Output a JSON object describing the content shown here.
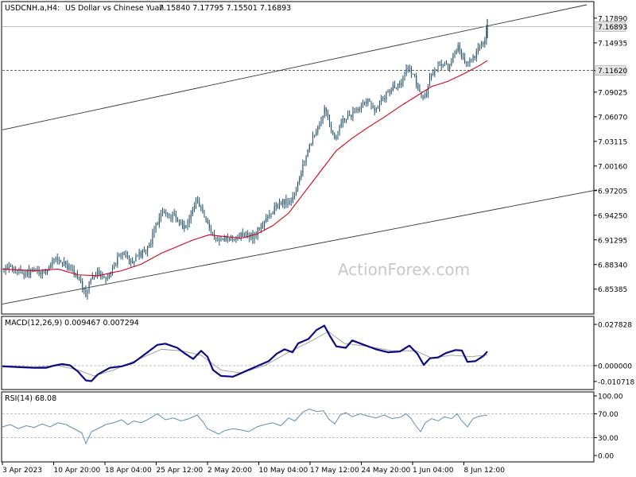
{
  "header": {
    "symbol": "USDCNH.a,H4:",
    "description": "US Dollar vs Chinese Yuan",
    "ohlc": "7.15840 7.17795 7.15501 7.16893"
  },
  "watermark": "ActionForex.com",
  "colors": {
    "candle": "#1f4f66",
    "ma": "#d4001a",
    "channel": "#333333",
    "macd": "#0a0a84",
    "signal": "#9a9a9a",
    "rsi": "#5b90ad",
    "price_tag_bg": "#e6e6e6"
  },
  "chart_data": [
    {
      "type": "candlestick",
      "pane": "price",
      "ylim": [
        6.825,
        7.195
      ],
      "y_ticks": [
        "7.17890",
        "7.14935",
        "7.11620",
        "7.09025",
        "7.06070",
        "7.03115",
        "7.00160",
        "6.97205",
        "6.94250",
        "6.91295",
        "6.88340",
        "6.85385"
      ],
      "last_price": "7.16893",
      "hline": "7.11620",
      "x_ticks": [
        "3 Apr 2023",
        "10 Apr 20:00",
        "18 Apr 04:00",
        "25 Apr 12:00",
        "2 May 20:00",
        "10 May 04:00",
        "17 May 12:00",
        "24 May 20:00",
        "1 Jun 04:00",
        "8 Jun 12:00"
      ],
      "close_path": [
        [
          0,
          6.875
        ],
        [
          10,
          6.88
        ],
        [
          25,
          6.872
        ],
        [
          40,
          6.878
        ],
        [
          55,
          6.874
        ],
        [
          62,
          6.89
        ],
        [
          72,
          6.887
        ],
        [
          85,
          6.878
        ],
        [
          92,
          6.872
        ],
        [
          100,
          6.86
        ],
        [
          105,
          6.845
        ],
        [
          112,
          6.868
        ],
        [
          120,
          6.874
        ],
        [
          128,
          6.869
        ],
        [
          134,
          6.872
        ],
        [
          140,
          6.878
        ],
        [
          145,
          6.892
        ],
        [
          150,
          6.9
        ],
        [
          158,
          6.89
        ],
        [
          165,
          6.887
        ],
        [
          172,
          6.895
        ],
        [
          178,
          6.9
        ],
        [
          185,
          6.905
        ],
        [
          193,
          6.93
        ],
        [
          200,
          6.945
        ],
        [
          208,
          6.94
        ],
        [
          215,
          6.942
        ],
        [
          222,
          6.938
        ],
        [
          228,
          6.925
        ],
        [
          236,
          6.942
        ],
        [
          244,
          6.962
        ],
        [
          250,
          6.95
        ],
        [
          256,
          6.935
        ],
        [
          262,
          6.925
        ],
        [
          270,
          6.91
        ],
        [
          278,
          6.915
        ],
        [
          285,
          6.912
        ],
        [
          292,
          6.915
        ],
        [
          300,
          6.92
        ],
        [
          308,
          6.918
        ],
        [
          316,
          6.918
        ],
        [
          322,
          6.925
        ],
        [
          330,
          6.935
        ],
        [
          338,
          6.945
        ],
        [
          346,
          6.955
        ],
        [
          354,
          6.96
        ],
        [
          362,
          6.955
        ],
        [
          368,
          6.97
        ],
        [
          374,
          6.99
        ],
        [
          380,
          7.005
        ],
        [
          388,
          7.03
        ],
        [
          395,
          7.04
        ],
        [
          402,
          7.06
        ],
        [
          406,
          7.07
        ],
        [
          412,
          7.05
        ],
        [
          418,
          7.03
        ],
        [
          425,
          7.05
        ],
        [
          432,
          7.06
        ],
        [
          440,
          7.065
        ],
        [
          447,
          7.07
        ],
        [
          455,
          7.075
        ],
        [
          462,
          7.08
        ],
        [
          468,
          7.07
        ],
        [
          475,
          7.078
        ],
        [
          482,
          7.085
        ],
        [
          490,
          7.095
        ],
        [
          497,
          7.1
        ],
        [
          504,
          7.105
        ],
        [
          510,
          7.12
        ],
        [
          516,
          7.115
        ],
        [
          521,
          7.1
        ],
        [
          526,
          7.085
        ],
        [
          530,
          7.08
        ],
        [
          535,
          7.095
        ],
        [
          540,
          7.112
        ],
        [
          545,
          7.118
        ],
        [
          550,
          7.122
        ],
        [
          556,
          7.127
        ],
        [
          562,
          7.12
        ],
        [
          568,
          7.137
        ],
        [
          573,
          7.145
        ],
        [
          578,
          7.13
        ],
        [
          583,
          7.125
        ],
        [
          588,
          7.128
        ],
        [
          592,
          7.132
        ],
        [
          598,
          7.14
        ],
        [
          603,
          7.148
        ],
        [
          607,
          7.155
        ],
        [
          610,
          7.169
        ]
      ],
      "ma_path": [
        [
          0,
          6.878
        ],
        [
          40,
          6.876
        ],
        [
          70,
          6.878
        ],
        [
          95,
          6.871
        ],
        [
          120,
          6.87
        ],
        [
          150,
          6.876
        ],
        [
          175,
          6.884
        ],
        [
          200,
          6.897
        ],
        [
          220,
          6.905
        ],
        [
          240,
          6.913
        ],
        [
          260,
          6.919
        ],
        [
          280,
          6.917
        ],
        [
          300,
          6.915
        ],
        [
          320,
          6.92
        ],
        [
          340,
          6.93
        ],
        [
          360,
          6.945
        ],
        [
          380,
          6.97
        ],
        [
          400,
          6.995
        ],
        [
          420,
          7.02
        ],
        [
          440,
          7.035
        ],
        [
          460,
          7.048
        ],
        [
          480,
          7.06
        ],
        [
          500,
          7.073
        ],
        [
          520,
          7.085
        ],
        [
          540,
          7.097
        ],
        [
          560,
          7.103
        ],
        [
          580,
          7.112
        ],
        [
          600,
          7.122
        ],
        [
          610,
          7.128
        ]
      ],
      "channel_upper": [
        [
          0,
          7.045
        ],
        [
          735,
          7.195
        ]
      ],
      "channel_lower": [
        [
          0,
          6.836
        ],
        [
          748,
          6.973
        ]
      ]
    },
    {
      "type": "line",
      "pane": "macd",
      "title": "MACD(12,26,9) 0.009467 0.007294",
      "ylim": [
        -0.0135,
        0.03
      ],
      "y_ticks": [
        "0.027828",
        "0.000000",
        "-0.010718"
      ],
      "macd_path": [
        [
          0,
          -0.0005
        ],
        [
          20,
          -0.001
        ],
        [
          40,
          -0.0015
        ],
        [
          55,
          -0.0015
        ],
        [
          65,
          0.0
        ],
        [
          75,
          0.001
        ],
        [
          85,
          0.0002
        ],
        [
          95,
          -0.004
        ],
        [
          105,
          -0.01
        ],
        [
          112,
          -0.0105
        ],
        [
          120,
          -0.006
        ],
        [
          135,
          -0.0015
        ],
        [
          150,
          -0.0005
        ],
        [
          165,
          0.002
        ],
        [
          180,
          0.008
        ],
        [
          195,
          0.014
        ],
        [
          205,
          0.0148
        ],
        [
          220,
          0.012
        ],
        [
          230,
          0.008
        ],
        [
          240,
          0.0045
        ],
        [
          250,
          0.01
        ],
        [
          258,
          0.006
        ],
        [
          265,
          -0.003
        ],
        [
          275,
          -0.007
        ],
        [
          290,
          -0.0075
        ],
        [
          305,
          -0.004
        ],
        [
          320,
          -0.0005
        ],
        [
          335,
          0.003
        ],
        [
          345,
          0.008
        ],
        [
          355,
          0.011
        ],
        [
          365,
          0.009
        ],
        [
          372,
          0.015
        ],
        [
          385,
          0.018
        ],
        [
          395,
          0.024
        ],
        [
          405,
          0.027
        ],
        [
          412,
          0.02
        ],
        [
          420,
          0.013
        ],
        [
          432,
          0.012
        ],
        [
          440,
          0.017
        ],
        [
          455,
          0.014
        ],
        [
          470,
          0.011
        ],
        [
          485,
          0.009
        ],
        [
          500,
          0.0095
        ],
        [
          512,
          0.0135
        ],
        [
          522,
          0.008
        ],
        [
          530,
          0.0005
        ],
        [
          538,
          0.005
        ],
        [
          548,
          0.0055
        ],
        [
          558,
          0.0085
        ],
        [
          570,
          0.0105
        ],
        [
          578,
          0.0102
        ],
        [
          585,
          0.0025
        ],
        [
          595,
          0.003
        ],
        [
          605,
          0.0065
        ],
        [
          610,
          0.0095
        ]
      ],
      "signal_path": [
        [
          0,
          0.0
        ],
        [
          40,
          -0.001
        ],
        [
          70,
          0.0
        ],
        [
          95,
          -0.003
        ],
        [
          115,
          -0.007
        ],
        [
          140,
          -0.003
        ],
        [
          170,
          0.004
        ],
        [
          200,
          0.011
        ],
        [
          225,
          0.01
        ],
        [
          250,
          0.007
        ],
        [
          275,
          -0.003
        ],
        [
          300,
          -0.005
        ],
        [
          330,
          0.0
        ],
        [
          360,
          0.009
        ],
        [
          390,
          0.017
        ],
        [
          410,
          0.023
        ],
        [
          430,
          0.015
        ],
        [
          460,
          0.013
        ],
        [
          490,
          0.01
        ],
        [
          520,
          0.01
        ],
        [
          540,
          0.005
        ],
        [
          565,
          0.007
        ],
        [
          590,
          0.006
        ],
        [
          610,
          0.0073
        ]
      ]
    },
    {
      "type": "line",
      "pane": "rsi",
      "title": "RSI(14) 68.08",
      "ylim": [
        0,
        100
      ],
      "y_ticks": [
        "100.00",
        "70.00",
        "30.00",
        "0.00"
      ],
      "levels": [
        70,
        30
      ],
      "rsi_path": [
        [
          0,
          48
        ],
        [
          10,
          52
        ],
        [
          20,
          45
        ],
        [
          30,
          50
        ],
        [
          40,
          47
        ],
        [
          50,
          53
        ],
        [
          60,
          48
        ],
        [
          70,
          55
        ],
        [
          80,
          52
        ],
        [
          90,
          45
        ],
        [
          100,
          38
        ],
        [
          105,
          20
        ],
        [
          112,
          40
        ],
        [
          120,
          45
        ],
        [
          130,
          52
        ],
        [
          140,
          55
        ],
        [
          150,
          60
        ],
        [
          158,
          52
        ],
        [
          165,
          58
        ],
        [
          175,
          55
        ],
        [
          185,
          62
        ],
        [
          195,
          70
        ],
        [
          205,
          60
        ],
        [
          215,
          63
        ],
        [
          225,
          58
        ],
        [
          235,
          62
        ],
        [
          245,
          68
        ],
        [
          252,
          57
        ],
        [
          258,
          45
        ],
        [
          266,
          40
        ],
        [
          272,
          36
        ],
        [
          280,
          42
        ],
        [
          290,
          45
        ],
        [
          300,
          43
        ],
        [
          310,
          40
        ],
        [
          320,
          48
        ],
        [
          330,
          52
        ],
        [
          340,
          55
        ],
        [
          350,
          50
        ],
        [
          360,
          63
        ],
        [
          368,
          58
        ],
        [
          378,
          73
        ],
        [
          386,
          78
        ],
        [
          395,
          74
        ],
        [
          404,
          75
        ],
        [
          410,
          62
        ],
        [
          418,
          53
        ],
        [
          425,
          68
        ],
        [
          432,
          72
        ],
        [
          440,
          65
        ],
        [
          450,
          70
        ],
        [
          460,
          66
        ],
        [
          470,
          63
        ],
        [
          480,
          68
        ],
        [
          490,
          62
        ],
        [
          500,
          64
        ],
        [
          508,
          70
        ],
        [
          514,
          62
        ],
        [
          520,
          50
        ],
        [
          526,
          40
        ],
        [
          532,
          55
        ],
        [
          540,
          62
        ],
        [
          548,
          58
        ],
        [
          556,
          65
        ],
        [
          565,
          62
        ],
        [
          572,
          70
        ],
        [
          578,
          58
        ],
        [
          585,
          48
        ],
        [
          592,
          62
        ],
        [
          600,
          66
        ],
        [
          606,
          67
        ],
        [
          610,
          68
        ]
      ]
    }
  ]
}
